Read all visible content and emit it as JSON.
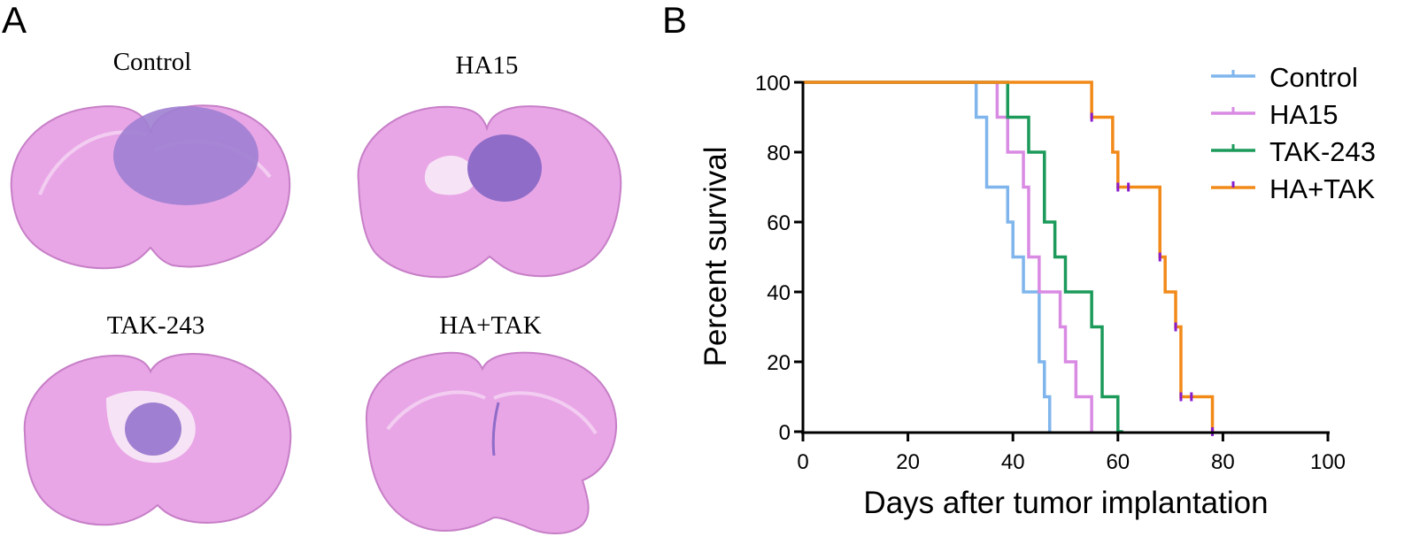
{
  "panel_a": {
    "letter": "A",
    "sections": [
      {
        "label": "Control"
      },
      {
        "label": "HA15"
      },
      {
        "label": "TAK-243"
      },
      {
        "label": "HA+TAK"
      }
    ],
    "colors": {
      "tissue": "#e8a6e6",
      "tissue_light": "#f1c3ef",
      "tumor": "#9e7fd1",
      "outline": "#c77fc7"
    }
  },
  "panel_b": {
    "letter": "B"
  },
  "chart_data": {
    "type": "line",
    "subtype": "kaplan-meier step",
    "xlabel": "Days after tumor implantation",
    "ylabel": "Percent survival",
    "xlim": [
      0,
      100
    ],
    "ylim": [
      0,
      100
    ],
    "xticks": [
      "0",
      "20",
      "40",
      "60",
      "80",
      "100"
    ],
    "yticks": [
      "0",
      "20",
      "40",
      "60",
      "80",
      "100"
    ],
    "grid": false,
    "legend_position": "top-right",
    "series": [
      {
        "name": "Control",
        "color": "#7fb5ec",
        "x": [
          0,
          33,
          35,
          39,
          40,
          42,
          45,
          46,
          47
        ],
        "y": [
          100,
          90,
          70,
          60,
          50,
          40,
          20,
          10,
          0
        ]
      },
      {
        "name": "HA15",
        "color": "#d98ae3",
        "x": [
          0,
          37,
          39,
          42,
          43,
          45,
          49,
          50,
          52,
          55
        ],
        "y": [
          100,
          90,
          80,
          70,
          50,
          40,
          30,
          20,
          10,
          0
        ]
      },
      {
        "name": "TAK-243",
        "color": "#1b9a5a",
        "x": [
          0,
          39,
          43,
          46,
          48,
          50,
          55,
          57,
          60,
          61
        ],
        "y": [
          100,
          90,
          80,
          60,
          50,
          40,
          30,
          10,
          0,
          0
        ]
      },
      {
        "name": "HA+TAK",
        "color": "#f28a1a",
        "censor_color": "#8a1ccf",
        "x": [
          0,
          55,
          59,
          60,
          62,
          68,
          69,
          71,
          72,
          74,
          78
        ],
        "y": [
          100,
          90,
          80,
          70,
          70,
          50,
          40,
          30,
          10,
          10,
          0
        ],
        "censor_x": [
          55,
          60,
          62,
          68,
          71,
          72,
          74,
          78
        ]
      }
    ]
  }
}
